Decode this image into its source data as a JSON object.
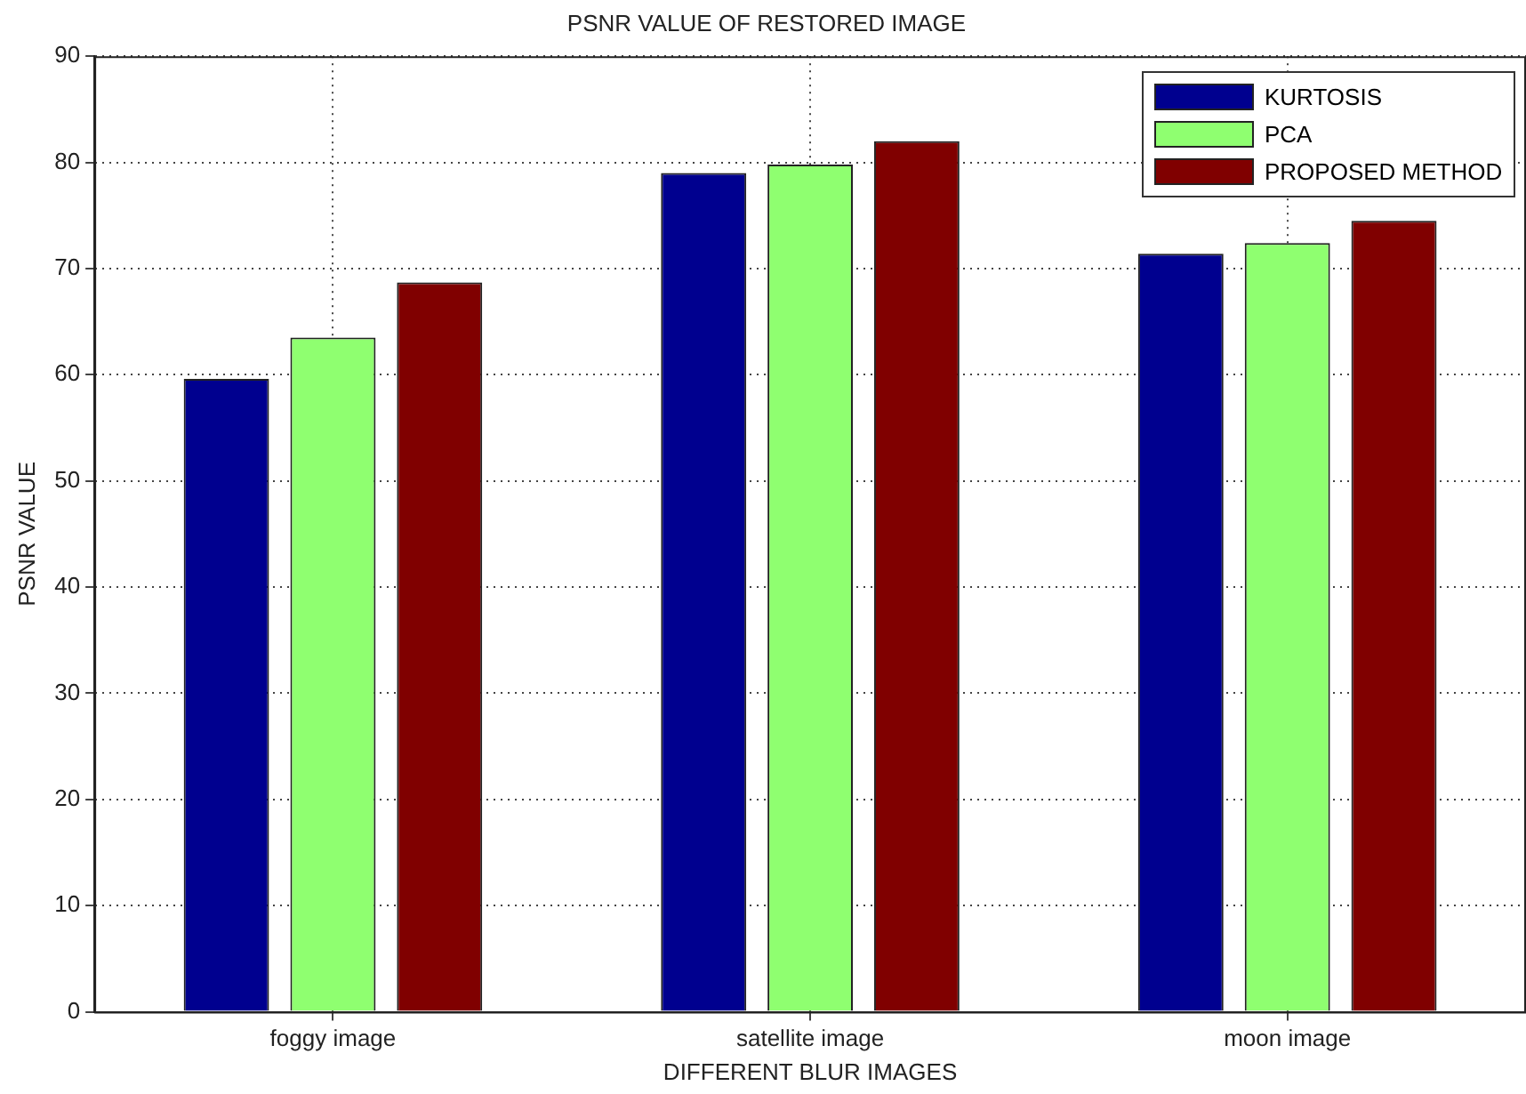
{
  "chart_data": {
    "type": "bar",
    "title": "PSNR VALUE OF RESTORED IMAGE",
    "xlabel": "DIFFERENT BLUR IMAGES",
    "ylabel": "PSNR VALUE",
    "categories": [
      "foggy image",
      "satellite image",
      "moon image"
    ],
    "series": [
      {
        "name": "KURTOSIS",
        "color": "#00008f",
        "values": [
          59.6,
          79.0,
          71.4
        ]
      },
      {
        "name": "PCA",
        "color": "#8fff70",
        "values": [
          63.5,
          79.8,
          72.4
        ]
      },
      {
        "name": "PROPOSED METHOD",
        "color": "#800000",
        "values": [
          68.7,
          82.0,
          74.5
        ]
      }
    ],
    "ylim": [
      0,
      90
    ],
    "yticks": [
      0,
      10,
      20,
      30,
      40,
      50,
      60,
      70,
      80,
      90
    ],
    "grid": true,
    "legend": "top right"
  }
}
